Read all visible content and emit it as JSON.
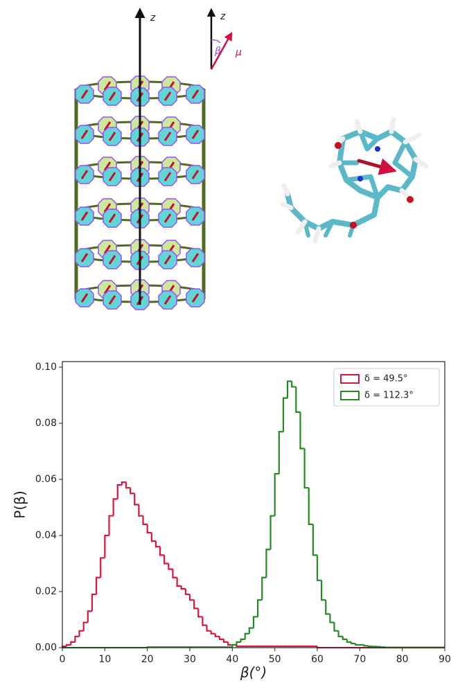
{
  "diagram": {
    "axis_label": "z",
    "axis_label_2": "z",
    "angle_label": "β",
    "dipole_label": "μ"
  },
  "chart_data": {
    "type": "histogram",
    "xlabel": "β(°)",
    "ylabel": "P(β)",
    "bins": [
      0,
      1,
      2,
      3,
      4,
      5,
      6,
      7,
      8,
      9,
      10,
      11,
      12,
      13,
      14,
      15,
      16,
      17,
      18,
      19,
      20,
      21,
      22,
      23,
      24,
      25,
      26,
      27,
      28,
      29,
      30,
      31,
      32,
      33,
      34,
      35,
      36,
      37,
      38,
      39,
      40,
      41,
      42,
      43,
      44,
      45,
      46,
      47,
      48,
      49,
      50,
      51,
      52,
      53,
      54,
      55,
      56,
      57,
      58,
      59,
      60,
      61,
      62,
      63,
      64,
      65,
      66,
      67,
      68,
      69,
      70,
      71,
      72,
      73,
      74,
      75,
      76,
      77,
      78,
      79,
      80,
      81,
      82,
      83,
      84,
      85,
      86,
      87,
      88,
      89,
      90
    ],
    "series": [
      {
        "name": "δ = 49.5°",
        "color": "#dc143c",
        "values": [
          0.0005,
          0.001,
          0.002,
          0.004,
          0.006,
          0.009,
          0.013,
          0.019,
          0.025,
          0.032,
          0.04,
          0.047,
          0.053,
          0.058,
          0.059,
          0.057,
          0.055,
          0.051,
          0.047,
          0.044,
          0.041,
          0.038,
          0.036,
          0.033,
          0.03,
          0.028,
          0.025,
          0.022,
          0.021,
          0.019,
          0.017,
          0.014,
          0.011,
          0.008,
          0.006,
          0.005,
          0.004,
          0.003,
          0.002,
          0.001,
          0.001,
          0.0005,
          0.0005,
          0.0005,
          0.0005,
          0.0005,
          0.0005,
          0.0005,
          0.0005,
          0.0005,
          0.0005,
          0.0005,
          0.0005,
          0.0005,
          0.0005,
          0.0005,
          0.0005,
          0.0005,
          0.0005,
          0.0005,
          0,
          0,
          0,
          0,
          0,
          0,
          0,
          0,
          0,
          0,
          0,
          0,
          0,
          0,
          0,
          0,
          0,
          0,
          0,
          0,
          0,
          0,
          0,
          0,
          0,
          0,
          0,
          0,
          0,
          0
        ]
      },
      {
        "name": "δ = 112.3°",
        "color": "#228b22",
        "values": [
          0,
          0,
          0,
          0,
          0,
          0,
          0,
          0,
          0,
          0,
          0,
          0,
          0,
          0,
          0,
          0,
          0,
          0,
          0,
          0,
          0.0002,
          0.0002,
          0.0002,
          0.0002,
          0.0002,
          0.0002,
          0.0002,
          0.0002,
          0.0002,
          0.0002,
          0.0002,
          0.0002,
          0.0002,
          0.0002,
          0.0002,
          0.0002,
          0.0002,
          0.0002,
          0.0002,
          0.0002,
          0.001,
          0.002,
          0.003,
          0.005,
          0.007,
          0.011,
          0.017,
          0.025,
          0.035,
          0.047,
          0.062,
          0.077,
          0.089,
          0.095,
          0.093,
          0.084,
          0.071,
          0.057,
          0.044,
          0.033,
          0.024,
          0.017,
          0.012,
          0.009,
          0.006,
          0.004,
          0.003,
          0.002,
          0.0015,
          0.001,
          0.001,
          0.0007,
          0.0005,
          0.0004,
          0.0003,
          0.0002,
          0.0001,
          0.0001,
          0.0001,
          0.0001,
          0.0001,
          0.0001,
          0.0001,
          0.0001,
          0.0001,
          0.0001,
          0.0001,
          0.0001,
          0.0001,
          0.0001
        ]
      }
    ],
    "xlim": [
      0,
      90
    ],
    "xticks": [
      0,
      10,
      20,
      30,
      40,
      50,
      60,
      70,
      80,
      90
    ],
    "ylim": [
      0,
      0.102
    ],
    "yticks": [
      {
        "value": 0,
        "label": "0.00"
      },
      {
        "value": 0.02,
        "label": "0.02"
      },
      {
        "value": 0.04,
        "label": "0.04"
      },
      {
        "value": 0.06,
        "label": "0.06"
      },
      {
        "value": 0.08,
        "label": "0.08"
      },
      {
        "value": 0.1,
        "label": "0.10"
      }
    ],
    "legend": "upper right"
  }
}
